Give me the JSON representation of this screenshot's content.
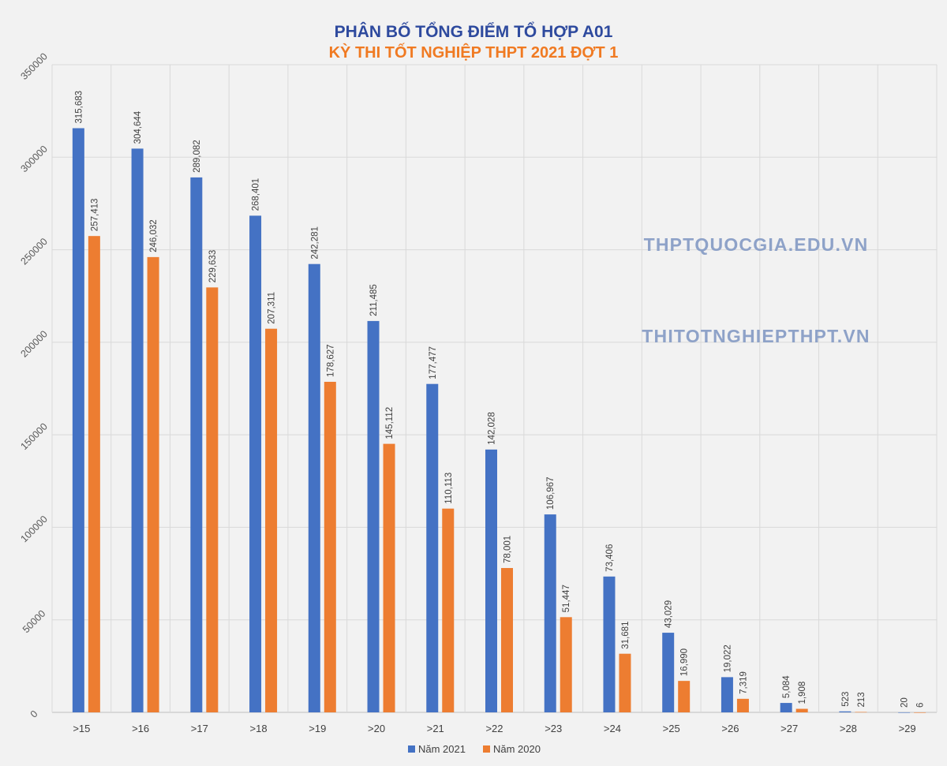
{
  "chart_data": {
    "type": "bar",
    "title": "PHÂN BỐ TỔNG ĐIỂM TỔ HỢP A01",
    "subtitle": "KỲ THI TỐT NGHIỆP THPT 2021 ĐỢT 1",
    "categories": [
      ">15",
      ">16",
      ">17",
      ">18",
      ">19",
      ">20",
      ">21",
      ">22",
      ">23",
      ">24",
      ">25",
      ">26",
      ">27",
      ">28",
      ">29"
    ],
    "series": [
      {
        "name": "Năm 2021",
        "color": "#4472c4",
        "values": [
          315683,
          304644,
          289082,
          268401,
          242281,
          211485,
          177477,
          142028,
          106967,
          73406,
          43029,
          19022,
          5084,
          523,
          20
        ],
        "labels": [
          "315,683",
          "304,644",
          "289,082",
          "268,401",
          "242,281",
          "211,485",
          "177,477",
          "142,028",
          "106,967",
          "73,406",
          "43,029",
          "19,022",
          "5,084",
          "523",
          "20"
        ]
      },
      {
        "name": "Năm 2020",
        "color": "#ed7d31",
        "values": [
          257413,
          246032,
          229633,
          207311,
          178627,
          145112,
          110113,
          78001,
          51447,
          31681,
          16990,
          7319,
          1908,
          213,
          6
        ],
        "labels": [
          "257,413",
          "246,032",
          "229,633",
          "207,311",
          "178,627",
          "145,112",
          "110,113",
          "78,001",
          "51,447",
          "31,681",
          "16,990",
          "7,319",
          "1,908",
          "213",
          "6"
        ]
      }
    ],
    "y_ticks": [
      "0",
      "50000",
      "100000",
      "150000",
      "200000",
      "250000",
      "300000",
      "350000"
    ],
    "ylim": [
      0,
      350000
    ],
    "grid": true,
    "legend": "bottom",
    "xlabel": "",
    "ylabel": ""
  },
  "watermarks": [
    "THPTQUOCGIA.EDU.VN",
    "THITOTNGHIEPTHPT.VN"
  ]
}
